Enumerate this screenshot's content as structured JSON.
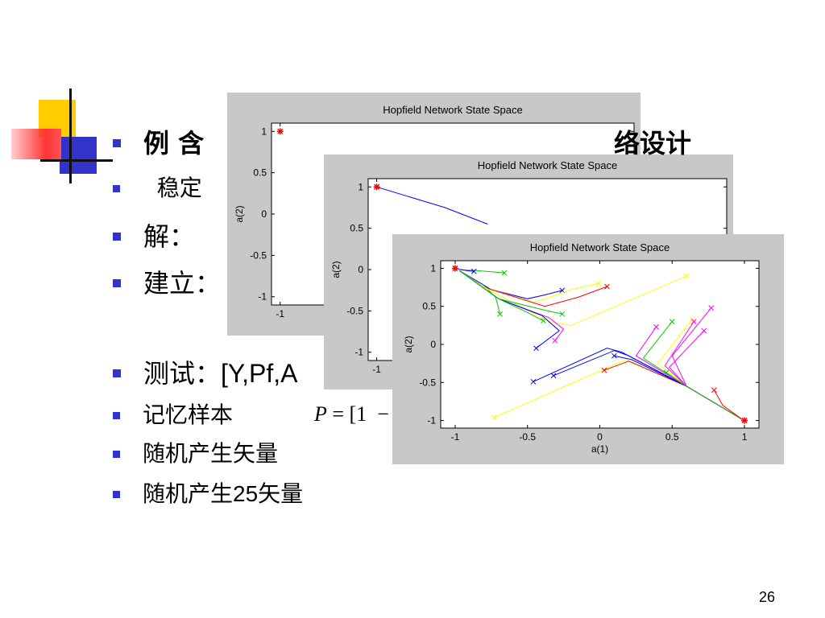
{
  "slide": {
    "bullets": [
      {
        "text": "例    含",
        "tail": "络设计",
        "bold": true
      },
      {
        "text": "  稳定"
      },
      {
        "text": "解："
      },
      {
        "text": "建立："
      },
      {
        "text": "测试：",
        "tail": "[Y,Pf,A"
      },
      {
        "text": "记忆样本"
      },
      {
        "text": "随机产生矢量"
      },
      {
        "text": "随机产生",
        "tail": "25",
        "tail2": "矢量"
      }
    ],
    "formula": {
      "var": "P",
      "rest": " = [1  −"
    },
    "page_number": "26"
  },
  "colors": {
    "bullet": "#3333cc",
    "window_bg": "#c8c8c8",
    "target": "#ff0000"
  },
  "chart_data": [
    {
      "type": "line",
      "title": "Hopfield Network State Space",
      "xlabel": "",
      "ylabel": "a(2)",
      "xlim": [
        -1.05,
        1.05
      ],
      "ylim": [
        -1.1,
        1.1
      ],
      "yticks": [
        "1",
        "0.5",
        "0",
        "-0.5",
        "-1"
      ],
      "xticks": [
        "-1"
      ],
      "targets": [
        [
          -1,
          1
        ]
      ],
      "series": []
    },
    {
      "type": "line",
      "title": "Hopfield Network State Space",
      "xlabel": "",
      "ylabel": "a(2)",
      "xlim": [
        -1.05,
        1.05
      ],
      "ylim": [
        -1.1,
        1.1
      ],
      "yticks": [
        "1",
        "0.5",
        "0",
        "-0.5",
        "-1"
      ],
      "xticks": [
        "-1"
      ],
      "targets": [
        [
          -1,
          1
        ]
      ],
      "series": [
        {
          "color": "#0000ff",
          "points": [
            [
              -1,
              1
            ],
            [
              -0.6,
              0.75
            ],
            [
              -0.35,
              0.55
            ]
          ]
        }
      ]
    },
    {
      "type": "line",
      "title": "Hopfield Network State Space",
      "xlabel": "a(1)",
      "ylabel": "a(2)",
      "xlim": [
        -1.1,
        1.1
      ],
      "ylim": [
        -1.1,
        1.1
      ],
      "xticks": [
        "-1",
        "-0.5",
        "0",
        "0.5",
        "1"
      ],
      "xtick_values": [
        -1,
        -0.5,
        0,
        0.5,
        1
      ],
      "yticks": [
        "1",
        "0.5",
        "0",
        "-0.5",
        "-1"
      ],
      "ytick_values": [
        1,
        0.5,
        0,
        -0.5,
        -1
      ],
      "targets": [
        [
          -1,
          1
        ],
        [
          1,
          -1
        ]
      ],
      "series": [
        {
          "color": "#00cc00",
          "points": [
            [
              -0.66,
              0.94
            ],
            [
              -0.85,
              0.97
            ],
            [
              -0.96,
              0.98
            ]
          ]
        },
        {
          "color": "#0000ff",
          "points": [
            [
              -0.87,
              0.96
            ],
            [
              -0.92,
              0.97
            ],
            [
              -0.98,
              0.99
            ]
          ]
        },
        {
          "color": "#00cc00",
          "points": [
            [
              -0.69,
              0.4
            ],
            [
              -0.72,
              0.62
            ],
            [
              -0.8,
              0.77
            ]
          ]
        },
        {
          "color": "#0000ff",
          "points": [
            [
              -0.26,
              0.71
            ],
            [
              -0.38,
              0.65
            ],
            [
              -0.5,
              0.6
            ],
            [
              -0.75,
              0.72
            ],
            [
              -0.97,
              0.97
            ]
          ]
        },
        {
          "color": "#ffff00",
          "points": [
            [
              -0.01,
              0.8
            ],
            [
              -0.2,
              0.72
            ],
            [
              -0.45,
              0.55
            ],
            [
              -0.8,
              0.75
            ],
            [
              -0.97,
              0.97
            ]
          ]
        },
        {
          "color": "#ff0000",
          "points": [
            [
              0.05,
              0.76
            ],
            [
              -0.15,
              0.62
            ],
            [
              -0.38,
              0.5
            ],
            [
              -0.8,
              0.75
            ],
            [
              -0.97,
              0.97
            ]
          ]
        },
        {
          "color": "#ffff00",
          "points": [
            [
              0.6,
              0.9
            ],
            [
              -0.2,
              0.25
            ],
            [
              -0.35,
              0.3
            ],
            [
              -0.8,
              0.75
            ],
            [
              -0.97,
              0.97
            ]
          ]
        },
        {
          "color": "#00cc00",
          "points": [
            [
              -0.26,
              0.4
            ],
            [
              -0.38,
              0.45
            ],
            [
              -0.7,
              0.6
            ],
            [
              -0.97,
              0.97
            ]
          ]
        },
        {
          "color": "#ff00ff",
          "points": [
            [
              -0.31,
              0.05
            ],
            [
              -0.25,
              0.2
            ],
            [
              -0.35,
              0.35
            ],
            [
              -0.7,
              0.6
            ],
            [
              -0.97,
              0.97
            ]
          ]
        },
        {
          "color": "#0000ff",
          "points": [
            [
              -0.44,
              -0.05
            ],
            [
              -0.28,
              0.18
            ],
            [
              -0.4,
              0.38
            ],
            [
              -0.7,
              0.6
            ],
            [
              -0.97,
              0.97
            ]
          ]
        },
        {
          "color": "#00cc00",
          "points": [
            [
              -0.39,
              0.31
            ],
            [
              -0.5,
              0.42
            ],
            [
              -0.7,
              0.6
            ],
            [
              -0.97,
              0.97
            ]
          ]
        },
        {
          "color": "#0000ff",
          "points": [
            [
              -0.46,
              -0.49
            ],
            [
              0.05,
              -0.05
            ],
            [
              0.15,
              -0.1
            ],
            [
              0.6,
              -0.55
            ],
            [
              0.98,
              -0.98
            ]
          ]
        },
        {
          "color": "#0000ff",
          "points": [
            [
              -0.32,
              -0.41
            ],
            [
              0.1,
              -0.08
            ],
            [
              0.2,
              -0.15
            ],
            [
              0.6,
              -0.55
            ],
            [
              0.98,
              -0.98
            ]
          ]
        },
        {
          "color": "#ffff00",
          "points": [
            [
              -0.73,
              -0.96
            ],
            [
              0.18,
              -0.2
            ],
            [
              0.6,
              -0.55
            ],
            [
              0.98,
              -0.98
            ]
          ]
        },
        {
          "color": "#ff0000",
          "points": [
            [
              0.03,
              -0.34
            ],
            [
              0.2,
              -0.22
            ],
            [
              0.6,
              -0.55
            ],
            [
              0.98,
              -0.98
            ]
          ]
        },
        {
          "color": "#0000ff",
          "points": [
            [
              0.1,
              -0.15
            ],
            [
              0.22,
              -0.2
            ],
            [
              0.6,
              -0.55
            ],
            [
              0.98,
              -0.98
            ]
          ]
        },
        {
          "color": "#ff00ff",
          "points": [
            [
              0.39,
              0.23
            ],
            [
              0.25,
              -0.15
            ],
            [
              0.6,
              -0.55
            ],
            [
              0.98,
              -0.98
            ]
          ]
        },
        {
          "color": "#00cc00",
          "points": [
            [
              0.5,
              0.3
            ],
            [
              0.3,
              -0.18
            ],
            [
              0.6,
              -0.55
            ],
            [
              0.98,
              -0.98
            ]
          ]
        },
        {
          "color": "#ffff00",
          "points": [
            [
              0.64,
              0.33
            ],
            [
              0.4,
              -0.25
            ],
            [
              0.6,
              -0.55
            ],
            [
              0.98,
              -0.98
            ]
          ]
        },
        {
          "color": "#ff00ff",
          "points": [
            [
              0.65,
              0.3
            ],
            [
              0.45,
              -0.28
            ],
            [
              0.6,
              -0.55
            ],
            [
              0.98,
              -0.98
            ]
          ]
        },
        {
          "color": "#ff00ff",
          "points": [
            [
              0.72,
              0.18
            ],
            [
              0.48,
              -0.3
            ],
            [
              0.6,
              -0.55
            ],
            [
              0.98,
              -0.98
            ]
          ]
        },
        {
          "color": "#ff00ff",
          "points": [
            [
              0.77,
              0.48
            ],
            [
              0.5,
              -0.15
            ],
            [
              0.6,
              -0.55
            ],
            [
              0.98,
              -0.98
            ]
          ]
        },
        {
          "color": "#00cc00",
          "points": [
            [
              0.46,
              -0.37
            ],
            [
              0.6,
              -0.55
            ],
            [
              0.98,
              -0.98
            ]
          ]
        },
        {
          "color": "#ff0000",
          "points": [
            [
              0.79,
              -0.6
            ],
            [
              0.85,
              -0.8
            ],
            [
              0.98,
              -0.98
            ]
          ]
        }
      ]
    }
  ]
}
